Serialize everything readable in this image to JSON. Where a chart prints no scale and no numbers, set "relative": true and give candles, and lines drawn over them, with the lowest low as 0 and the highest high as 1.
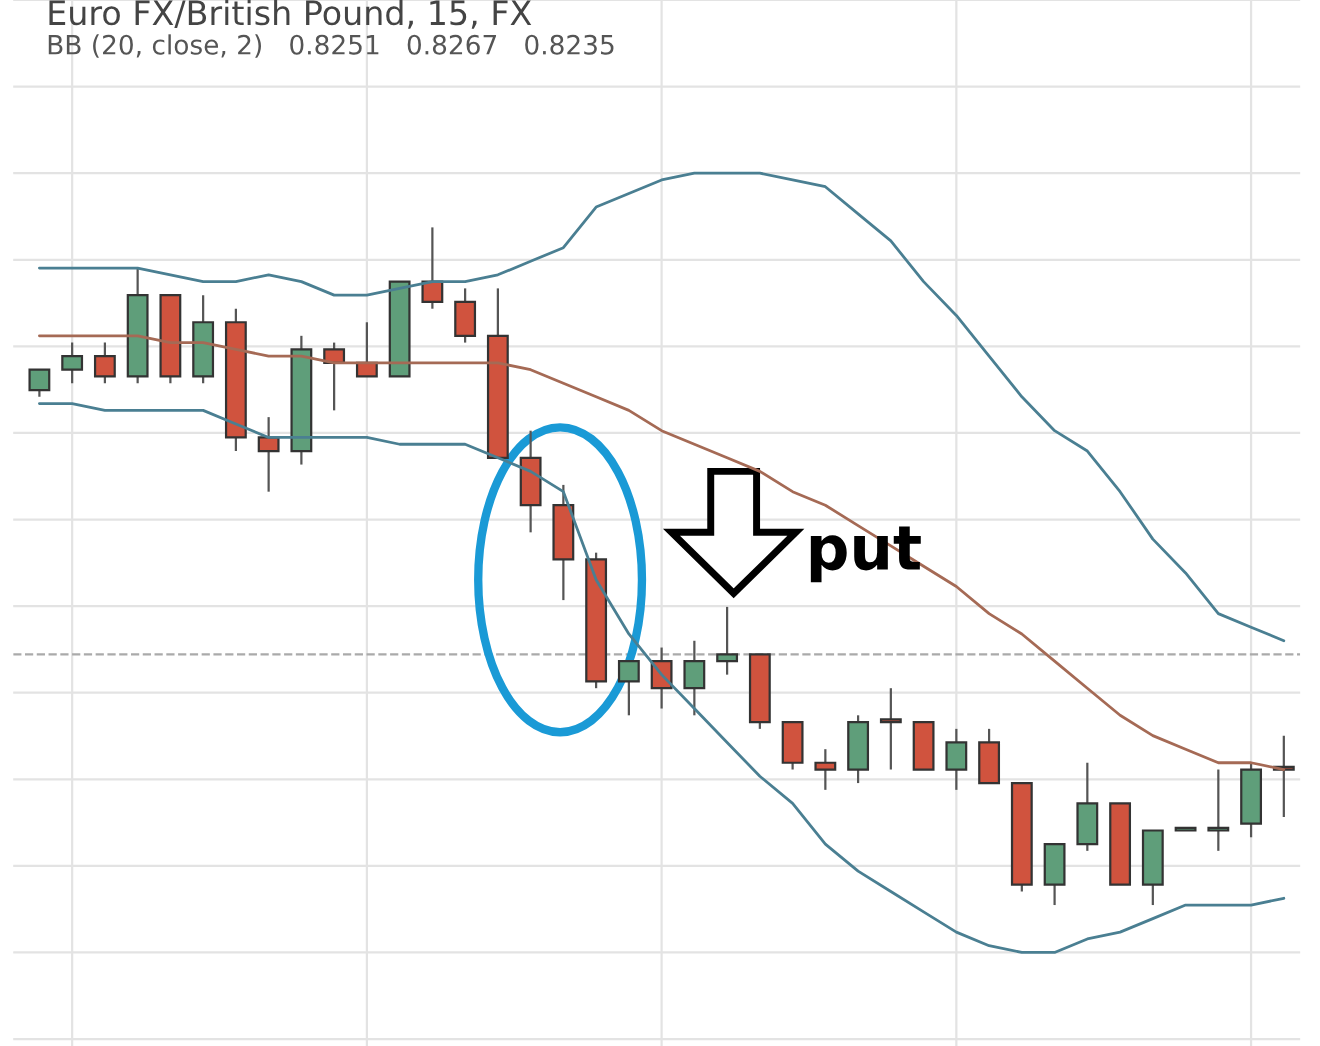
{
  "chart_data": {
    "type": "candlestick",
    "title": "Euro FX/British Pound, 15, FX",
    "subtitle": "BB (20, close, 2)   0.8251   0.8267   0.8235",
    "relative": true,
    "grid": true,
    "legend": false,
    "categories": [
      null,
      null,
      null,
      null,
      null,
      null,
      null,
      null,
      null,
      null,
      null,
      null,
      null,
      null,
      null,
      null,
      null,
      null,
      null,
      null,
      null,
      null,
      null,
      null,
      null,
      null,
      null,
      null,
      null,
      null,
      null,
      null,
      null,
      null,
      null,
      null,
      null,
      null,
      null
    ],
    "ohlc": [
      [
        0.76,
        0.79,
        0.75,
        0.79
      ],
      [
        0.79,
        0.83,
        0.77,
        0.81
      ],
      [
        0.81,
        0.83,
        0.77,
        0.78
      ],
      [
        0.78,
        0.94,
        0.77,
        0.9
      ],
      [
        0.9,
        0.9,
        0.77,
        0.78
      ],
      [
        0.78,
        0.9,
        0.77,
        0.86
      ],
      [
        0.86,
        0.88,
        0.67,
        0.69
      ],
      [
        0.69,
        0.72,
        0.61,
        0.67
      ],
      [
        0.67,
        0.84,
        0.65,
        0.82
      ],
      [
        0.82,
        0.83,
        0.73,
        0.8
      ],
      [
        0.8,
        0.86,
        0.78,
        0.78
      ],
      [
        0.78,
        0.92,
        0.78,
        0.92
      ],
      [
        0.92,
        1.0,
        0.88,
        0.89
      ],
      [
        0.89,
        0.91,
        0.83,
        0.84
      ],
      [
        0.84,
        0.91,
        0.66,
        0.66
      ],
      [
        0.66,
        0.7,
        0.55,
        0.59
      ],
      [
        0.59,
        0.62,
        0.45,
        0.51
      ],
      [
        0.51,
        0.52,
        0.32,
        0.33
      ],
      [
        0.33,
        0.36,
        0.28,
        0.36
      ],
      [
        0.36,
        0.38,
        0.29,
        0.32
      ],
      [
        0.32,
        0.39,
        0.28,
        0.36
      ],
      [
        0.36,
        0.44,
        0.34,
        0.37
      ],
      [
        0.37,
        0.37,
        0.26,
        0.27
      ],
      [
        0.27,
        0.27,
        0.2,
        0.21
      ],
      [
        0.21,
        0.23,
        0.17,
        0.2
      ],
      [
        0.2,
        0.28,
        0.18,
        0.27
      ],
      [
        0.27,
        0.32,
        0.2,
        0.27
      ],
      [
        0.27,
        0.27,
        0.2,
        0.2
      ],
      [
        0.2,
        0.26,
        0.17,
        0.24
      ],
      [
        0.24,
        0.26,
        0.18,
        0.18
      ],
      [
        0.18,
        0.18,
        0.02,
        0.03
      ],
      [
        0.03,
        0.09,
        0.0,
        0.09
      ],
      [
        0.09,
        0.21,
        0.08,
        0.15
      ],
      [
        0.15,
        0.15,
        0.03,
        0.03
      ],
      [
        0.03,
        0.11,
        0.0,
        0.11
      ],
      [
        0.11,
        0.11,
        0.11,
        0.11
      ],
      [
        0.11,
        0.2,
        0.08,
        0.11
      ],
      [
        0.12,
        0.21,
        0.1,
        0.2
      ],
      [
        0.2,
        0.25,
        0.13,
        0.2
      ]
    ],
    "colors": [
      "#5f9e7a",
      "#5f9e7a",
      "#d0533e",
      "#5f9e7a",
      "#d0533e",
      "#5f9e7a",
      "#d0533e",
      "#d0533e",
      "#5f9e7a",
      "#d0533e",
      "#d0533e",
      "#5f9e7a",
      "#d0533e",
      "#d0533e",
      "#d0533e",
      "#d0533e",
      "#d0533e",
      "#d0533e",
      "#5f9e7a",
      "#d0533e",
      "#5f9e7a",
      "#5f9e7a",
      "#d0533e",
      "#d0533e",
      "#d0533e",
      "#5f9e7a",
      "#d0533e",
      "#d0533e",
      "#5f9e7a",
      "#d0533e",
      "#d0533e",
      "#5f9e7a",
      "#5f9e7a",
      "#d0533e",
      "#5f9e7a",
      "#5f9e7a",
      "#5f9e7a",
      "#5f9e7a",
      "#d0533e"
    ],
    "series": [
      {
        "type": "line",
        "color": "#4a7f92",
        "values": [
          0.94,
          0.94,
          0.94,
          0.94,
          0.93,
          0.92,
          0.92,
          0.93,
          0.92,
          0.9,
          0.9,
          0.91,
          0.92,
          0.92,
          0.93,
          0.95,
          0.97,
          1.03,
          1.05,
          1.07,
          1.08,
          1.08,
          1.08,
          1.07,
          1.06,
          1.02,
          0.98,
          0.92,
          0.87,
          0.81,
          0.75,
          0.7,
          0.67,
          0.61,
          0.54,
          0.49,
          0.43,
          0.41,
          0.39
        ]
      },
      {
        "type": "line",
        "color": "#a56a55",
        "values": [
          0.84,
          0.84,
          0.84,
          0.84,
          0.83,
          0.83,
          0.82,
          0.81,
          0.81,
          0.8,
          0.8,
          0.8,
          0.8,
          0.8,
          0.8,
          0.79,
          0.77,
          0.75,
          0.73,
          0.7,
          0.68,
          0.66,
          0.64,
          0.61,
          0.59,
          0.56,
          0.53,
          0.5,
          0.47,
          0.43,
          0.4,
          0.36,
          0.32,
          0.28,
          0.25,
          0.23,
          0.21,
          0.21,
          0.2
        ]
      },
      {
        "type": "line",
        "color": "#4a7f92",
        "values": [
          0.74,
          0.74,
          0.73,
          0.73,
          0.73,
          0.73,
          0.71,
          0.69,
          0.69,
          0.69,
          0.69,
          0.68,
          0.68,
          0.68,
          0.66,
          0.64,
          0.61,
          0.48,
          0.4,
          0.34,
          0.29,
          0.24,
          0.19,
          0.15,
          0.09,
          0.05,
          0.02,
          -0.01,
          -0.04,
          -0.06,
          -0.07,
          -0.07,
          -0.05,
          -0.04,
          -0.02,
          0.0,
          0.0,
          0.0,
          0.01
        ]
      }
    ],
    "ref_lines": [
      {
        "axis": "y",
        "value": 0.37,
        "color": "#aaaaaa",
        "line_style": "dashed"
      }
    ],
    "annotations": [
      "put"
    ]
  }
}
